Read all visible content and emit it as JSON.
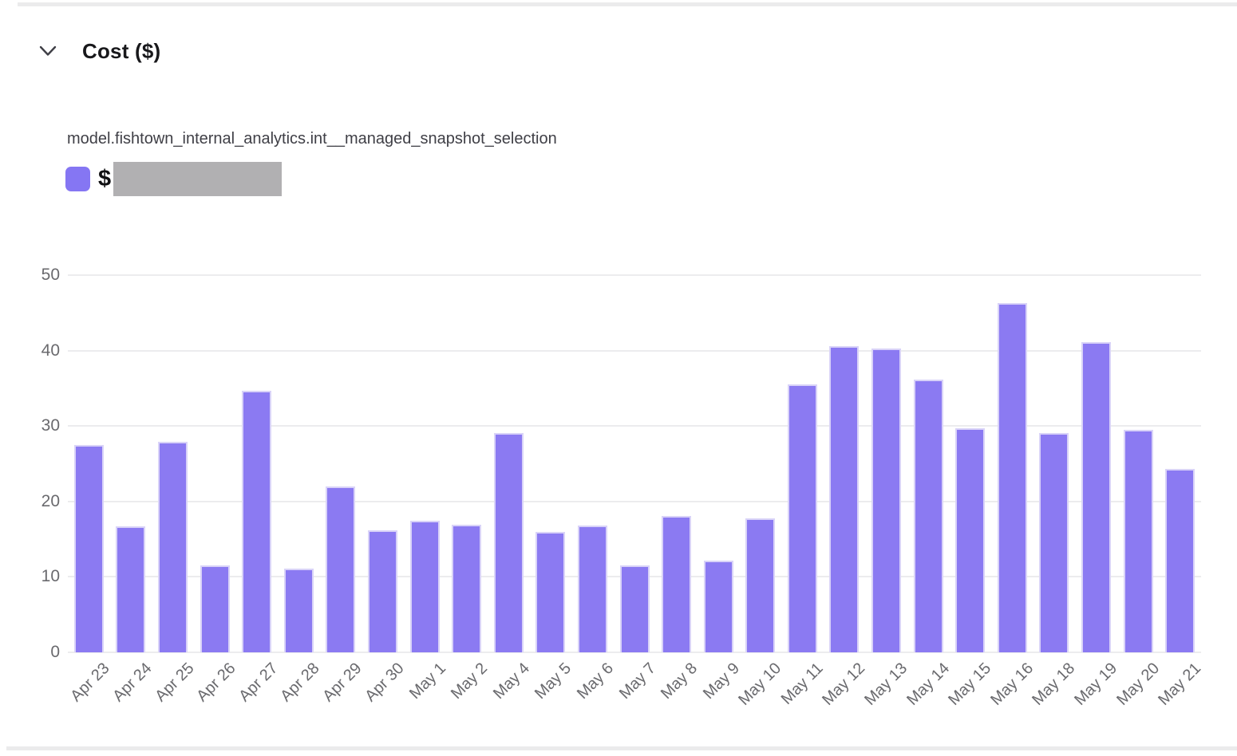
{
  "header": {
    "title": "Cost ($)",
    "collapse_icon": "chevron-down"
  },
  "chart_data": {
    "type": "bar",
    "title": "model.fishtown_internal_analytics.int__managed_snapshot_selection",
    "legend": {
      "label": "$",
      "value_redacted": true,
      "position": "top-left"
    },
    "categories": [
      "Apr 23",
      "Apr 24",
      "Apr 25",
      "Apr 26",
      "Apr 27",
      "Apr 28",
      "Apr 29",
      "Apr 30",
      "May 1",
      "May 2",
      "May 4",
      "May 5",
      "May 6",
      "May 7",
      "May 8",
      "May 9",
      "May 10",
      "May 11",
      "May 12",
      "May 13",
      "May 14",
      "May 15",
      "May 16",
      "May 18",
      "May 19",
      "May 20",
      "May 21"
    ],
    "values": [
      27.5,
      16.7,
      27.9,
      11.5,
      34.7,
      11.1,
      22.0,
      16.2,
      17.4,
      16.9,
      29.1,
      16.0,
      16.8,
      11.5,
      18.1,
      12.2,
      17.8,
      35.5,
      40.6,
      40.3,
      36.2,
      29.7,
      46.3,
      29.1,
      41.1,
      29.5,
      24.3
    ],
    "xlabel": "",
    "ylabel": "",
    "ylim": [
      0,
      50
    ],
    "yticks": [
      0,
      10,
      20,
      30,
      40,
      50
    ],
    "grid": "horizontal",
    "x_label_rotation": -45,
    "colors": {
      "bar_fill": "#8b7af2",
      "bar_border": "#d9d3f8",
      "legend_swatch": "#8576f3",
      "redaction_box": "#b1b0b2",
      "gridline": "#ececee",
      "tick_text": "#6a6a6e"
    }
  }
}
